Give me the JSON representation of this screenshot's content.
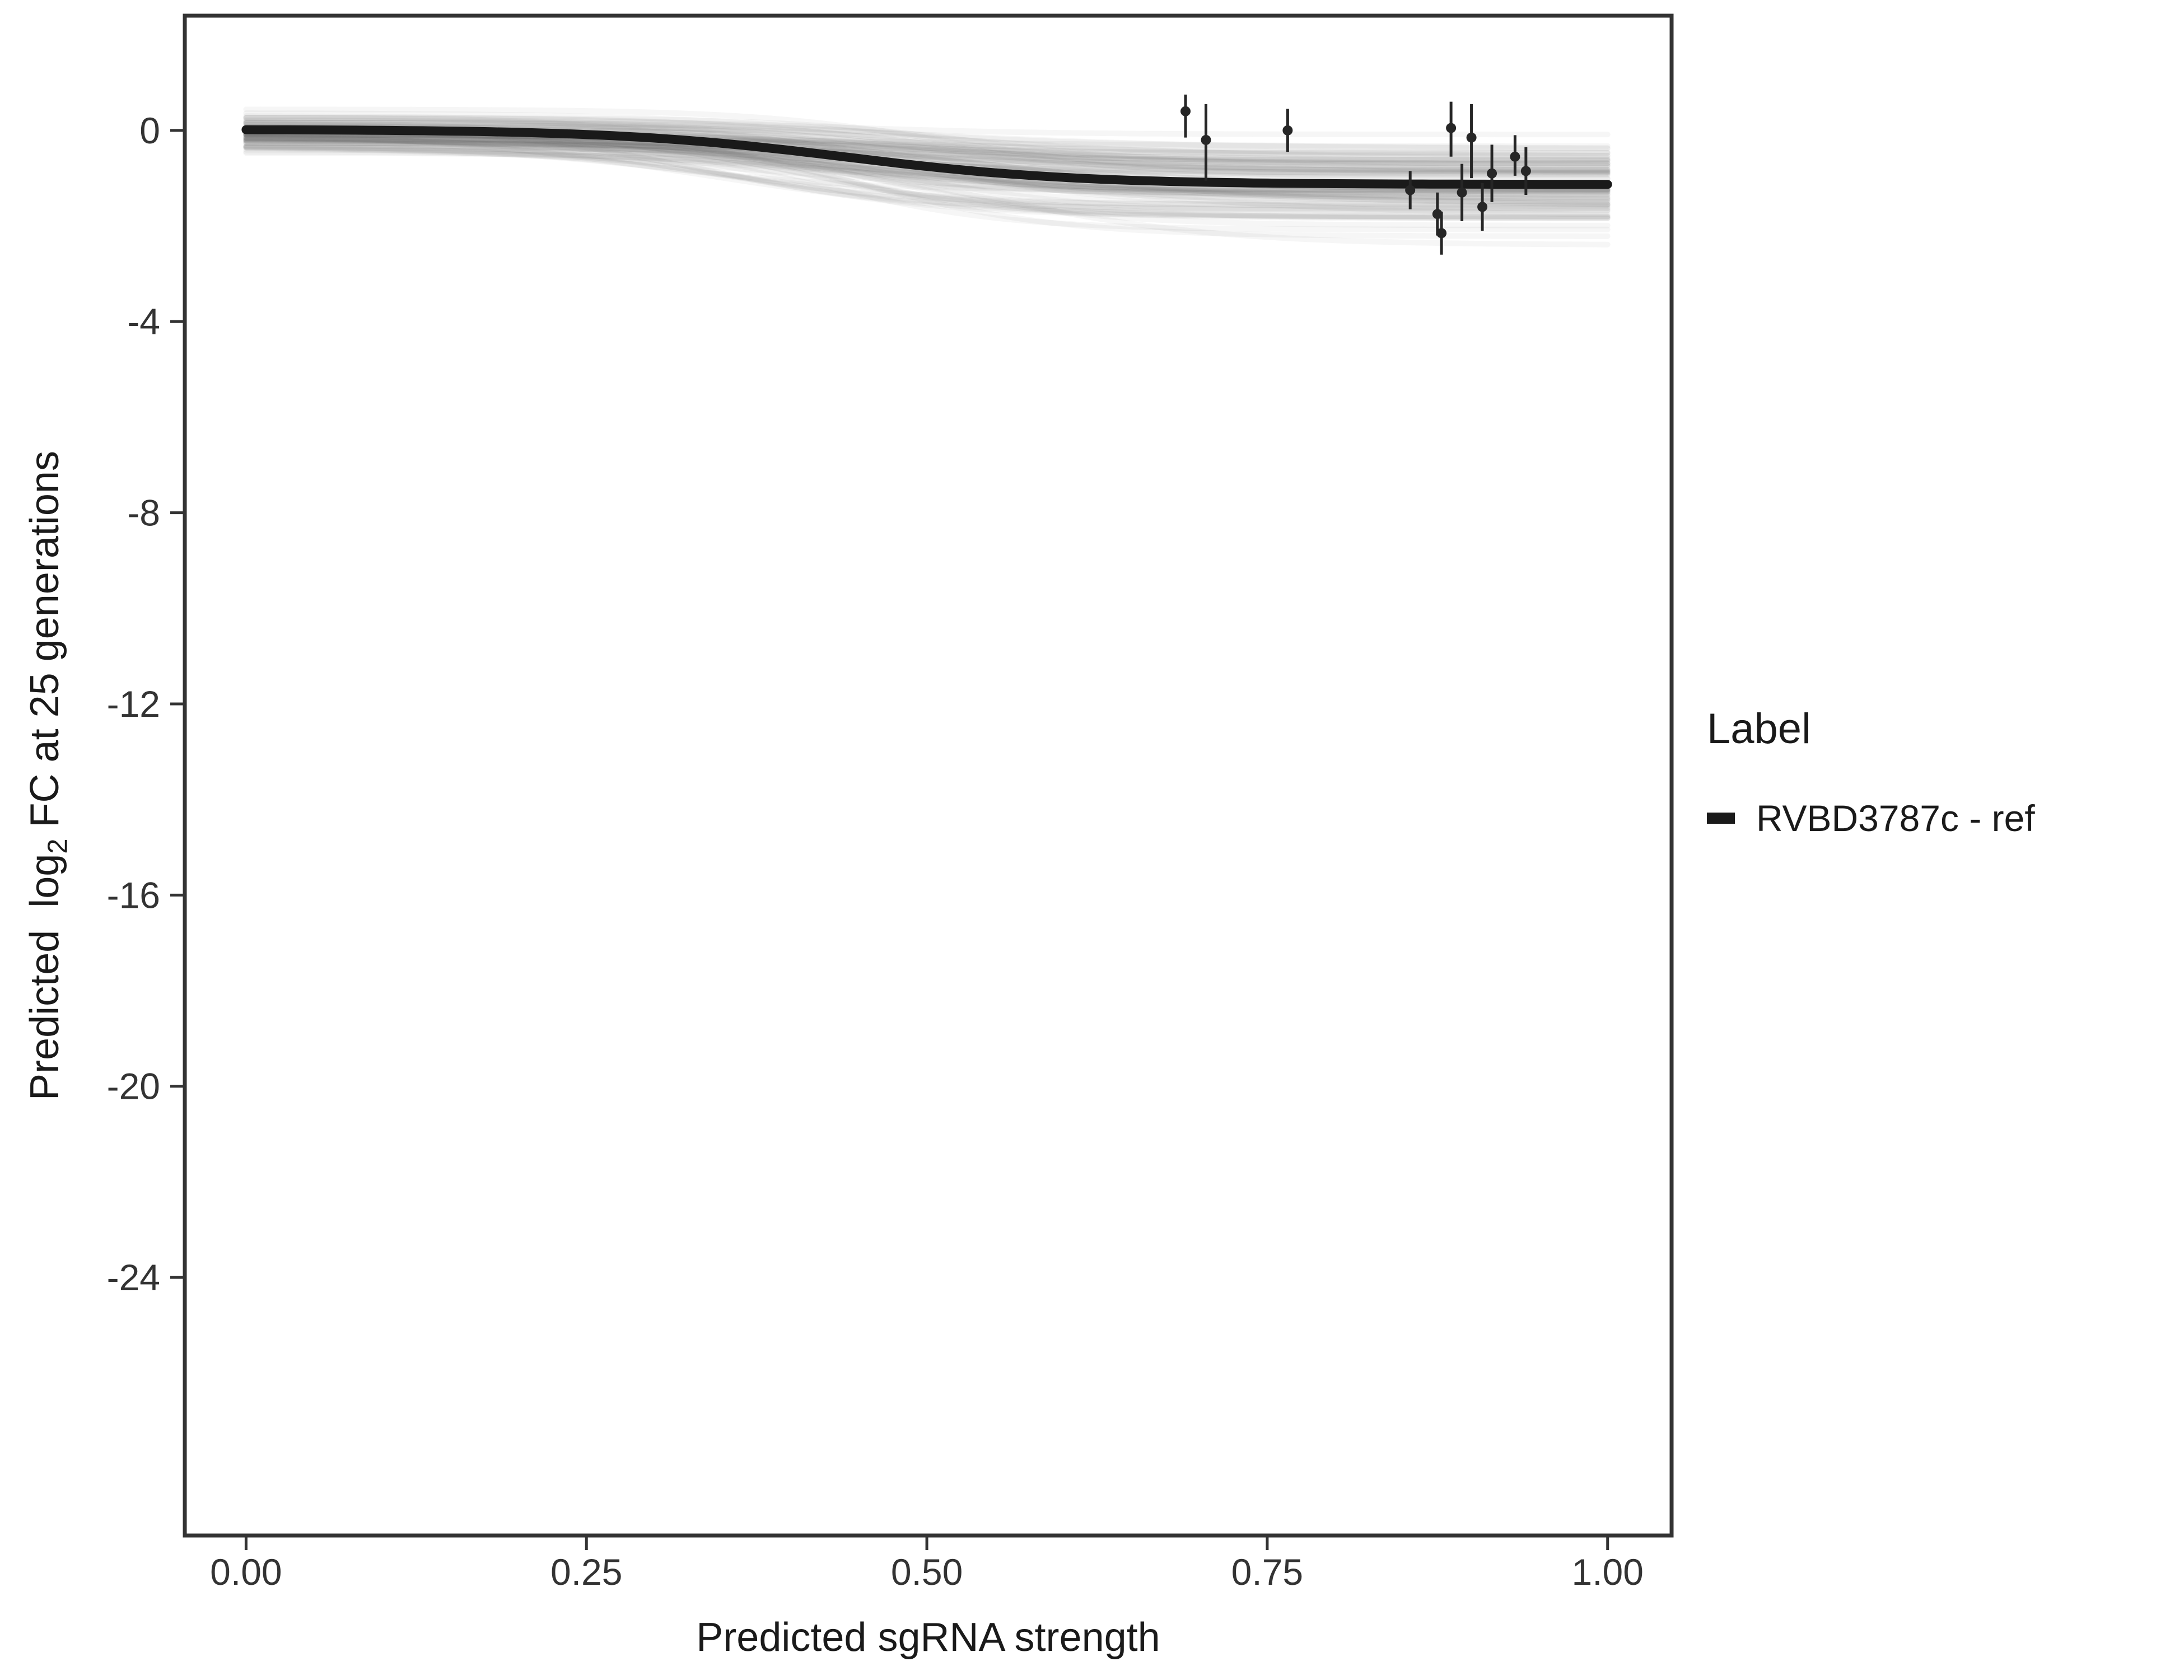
{
  "chart_data": {
    "type": "line",
    "title": "",
    "xlabel": "Predicted sgRNA strength",
    "ylabel_parts": {
      "prefix": "Predicted  log",
      "sub": "2",
      "suffix": " FC at 25 generations"
    },
    "x_ticks": {
      "values": [
        0,
        0.25,
        0.5,
        0.75,
        1.0
      ],
      "labels": [
        "0.00",
        "0.25",
        "0.50",
        "0.75",
        "1.00"
      ]
    },
    "y_ticks": {
      "values": [
        0,
        -4,
        -8,
        -12,
        -16,
        -20,
        -24
      ],
      "labels": [
        "0",
        "-4",
        "-8",
        "-12",
        "-16",
        "-20",
        "-24"
      ]
    },
    "xlim": [
      -0.045,
      1.047
    ],
    "ylim": [
      2.4,
      -29.4
    ],
    "grid": false,
    "legend_position": "right",
    "fit_curve": {
      "name": "RVBD3787c - ref",
      "start": 0.02,
      "depth": -1.15,
      "midpoint": 0.44,
      "steepness": 12,
      "color": "#1a1a1a",
      "x_range": [
        0,
        1
      ]
    },
    "ensemble": {
      "count": 90,
      "seed": 42,
      "start_sd": 0.22,
      "depth_mean": -1.05,
      "depth_sd": 0.5,
      "mid_mean": 0.45,
      "mid_sd": 0.06,
      "k_mean": 11,
      "k_sd": 3.5,
      "color": "#4d4d4d",
      "opacity": 0.05
    },
    "points": [
      {
        "x": 0.69,
        "y": 0.4,
        "lo": -0.15,
        "hi": 0.75
      },
      {
        "x": 0.705,
        "y": -0.2,
        "lo": -1.05,
        "hi": 0.55
      },
      {
        "x": 0.765,
        "y": 0.0,
        "lo": -0.45,
        "hi": 0.45
      },
      {
        "x": 0.855,
        "y": -1.25,
        "lo": -1.65,
        "hi": -0.85
      },
      {
        "x": 0.875,
        "y": -1.75,
        "lo": -2.2,
        "hi": -1.3
      },
      {
        "x": 0.878,
        "y": -2.15,
        "lo": -2.6,
        "hi": -1.7
      },
      {
        "x": 0.885,
        "y": 0.05,
        "lo": -0.55,
        "hi": 0.6
      },
      {
        "x": 0.893,
        "y": -1.3,
        "lo": -1.9,
        "hi": -0.7
      },
      {
        "x": 0.9,
        "y": -0.15,
        "lo": -1.0,
        "hi": 0.55
      },
      {
        "x": 0.908,
        "y": -1.6,
        "lo": -2.1,
        "hi": -1.1
      },
      {
        "x": 0.915,
        "y": -0.9,
        "lo": -1.5,
        "hi": -0.3
      },
      {
        "x": 0.932,
        "y": -0.55,
        "lo": -0.95,
        "hi": -0.1
      },
      {
        "x": 0.94,
        "y": -0.85,
        "lo": -1.35,
        "hi": -0.35
      }
    ],
    "legend": {
      "title": "Label",
      "entries": [
        {
          "label": "RVBD3787c - ref",
          "color": "#1a1a1a"
        }
      ]
    }
  },
  "colors": {
    "panel_border": "#333333",
    "axis_text": "#333333",
    "point": "#262626",
    "background": "#ffffff"
  }
}
